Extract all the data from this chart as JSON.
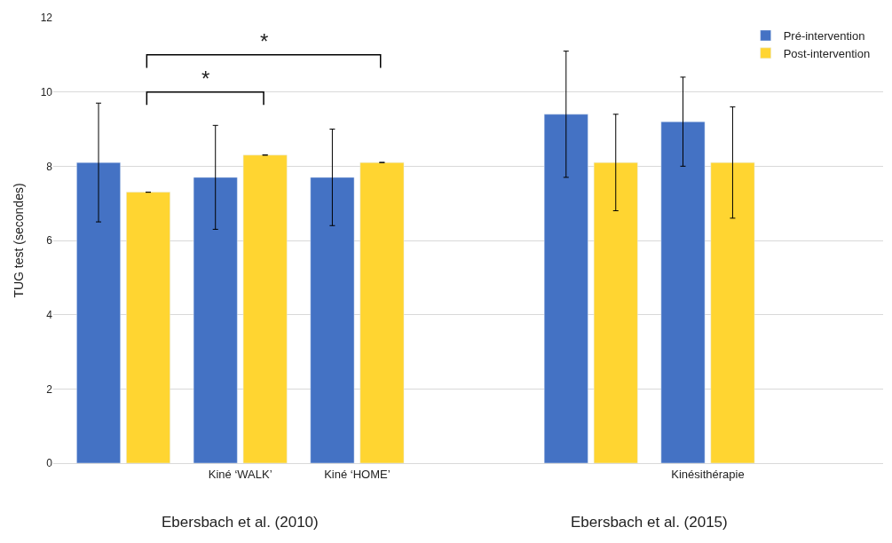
{
  "chart_data": {
    "type": "bar",
    "ylabel": "TUG test (secondes)",
    "categories": [
      null,
      "Kiné ‘WALK’",
      "Kiné ‘HOME’",
      null,
      null,
      "Kinésithérapie"
    ],
    "series": [
      {
        "name": "Pré-intervention",
        "color": "#4472c4",
        "values": [
          8.1,
          7.7,
          7.7,
          null,
          9.4,
          9.2
        ],
        "errors": [
          1.6,
          1.4,
          1.3,
          null,
          1.7,
          1.2
        ]
      },
      {
        "name": "Post-intervention",
        "color": "#ffd531",
        "values": [
          7.3,
          8.3,
          8.1,
          null,
          8.1,
          8.1
        ],
        "errors": [
          null,
          null,
          null,
          null,
          1.3,
          1.5
        ]
      }
    ],
    "ylim": [
      0,
      12
    ],
    "yticks": [
      0,
      2,
      4,
      6,
      8,
      10,
      12
    ],
    "grid": "y",
    "legend": "top right",
    "annotations": [
      "*",
      "*",
      "Ebersbach et al. (2010)",
      "Ebersbach et al. (2015)"
    ]
  }
}
